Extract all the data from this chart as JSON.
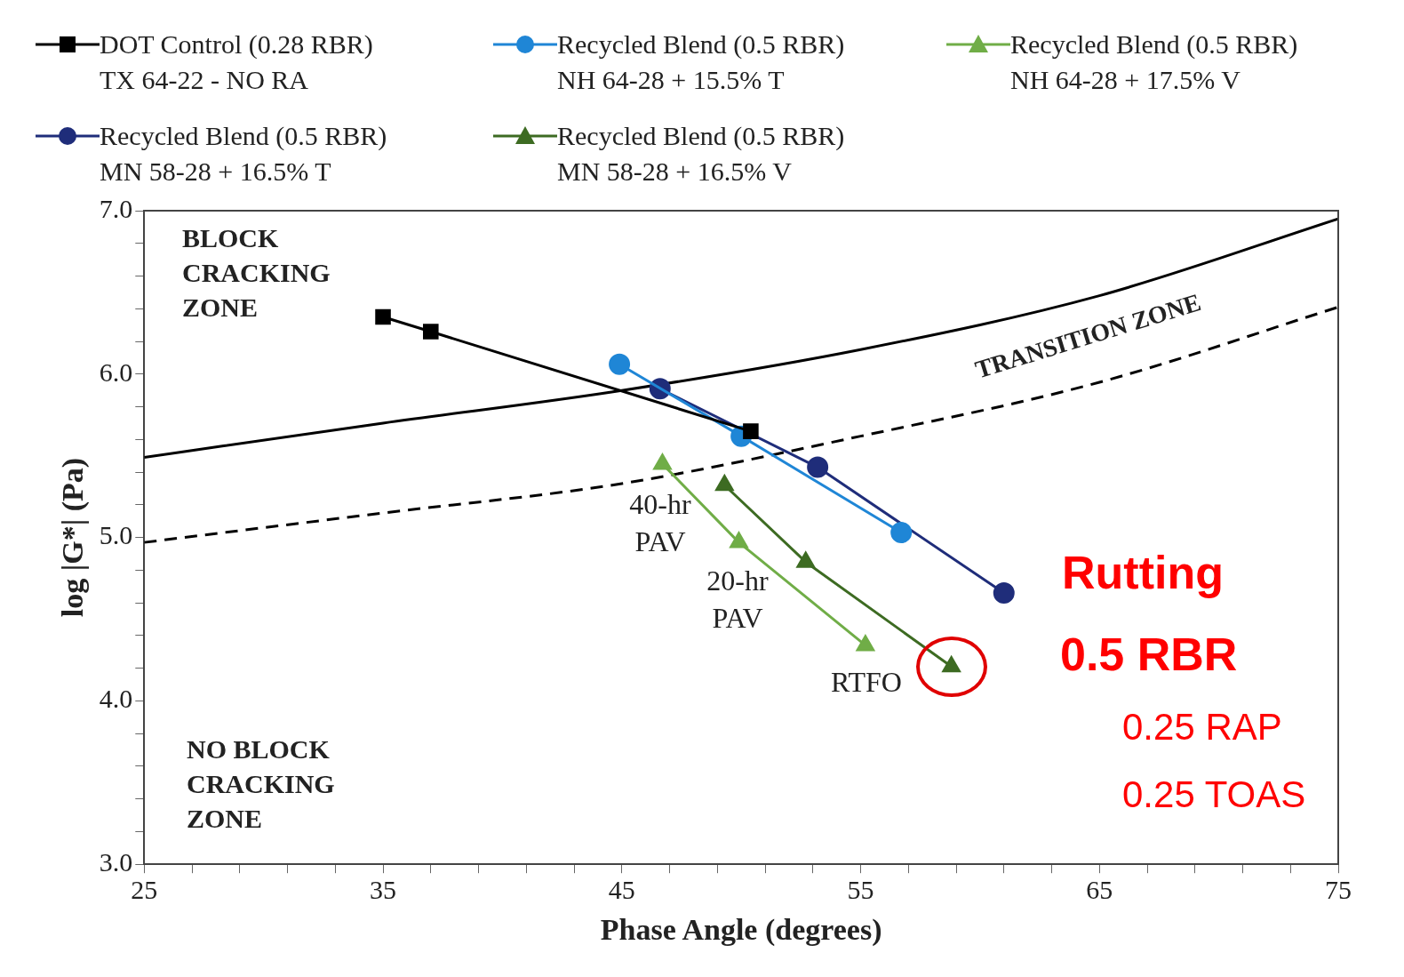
{
  "chart_data": {
    "type": "line",
    "xlabel": "Phase Angle (degrees)",
    "ylabel": "log |G*| (Pa)",
    "xlim": [
      25,
      75
    ],
    "ylim": [
      3,
      7
    ],
    "xticks": [
      25,
      {
        "value": 27,
        "label": null
      },
      {
        "value": 29,
        "label": null
      },
      {
        "value": 31,
        "label": null
      },
      {
        "value": 33,
        "label": null
      },
      35,
      {
        "value": 37,
        "label": null
      },
      {
        "value": 39,
        "label": null
      },
      {
        "value": 41,
        "label": null
      },
      {
        "value": 43,
        "label": null
      },
      45,
      {
        "value": 47,
        "label": null
      },
      {
        "value": 49,
        "label": null
      },
      {
        "value": 51,
        "label": null
      },
      {
        "value": 53,
        "label": null
      },
      55,
      {
        "value": 57,
        "label": null
      },
      {
        "value": 59,
        "label": null
      },
      {
        "value": 61,
        "label": null
      },
      {
        "value": 63,
        "label": null
      },
      65,
      {
        "value": 67,
        "label": null
      },
      {
        "value": 69,
        "label": null
      },
      {
        "value": 71,
        "label": null
      },
      {
        "value": 73,
        "label": null
      },
      75
    ],
    "yticks": [
      {
        "value": 3,
        "label": "3.0"
      },
      {
        "value": 3.2,
        "label": null
      },
      {
        "value": 3.4,
        "label": null
      },
      {
        "value": 3.6,
        "label": null
      },
      {
        "value": 3.8,
        "label": null
      },
      {
        "value": 4,
        "label": "4.0"
      },
      {
        "value": 4.2,
        "label": null
      },
      {
        "value": 4.4,
        "label": null
      },
      {
        "value": 4.6,
        "label": null
      },
      {
        "value": 4.8,
        "label": null
      },
      {
        "value": 5,
        "label": "5.0"
      },
      {
        "value": 5.2,
        "label": null
      },
      {
        "value": 5.4,
        "label": null
      },
      {
        "value": 5.6,
        "label": null
      },
      {
        "value": 5.8,
        "label": null
      },
      {
        "value": 6,
        "label": "6.0"
      },
      {
        "value": 6.2,
        "label": null
      },
      {
        "value": 6.4,
        "label": null
      },
      {
        "value": 6.6,
        "label": null
      },
      {
        "value": 6.8,
        "label": null
      },
      {
        "value": 7,
        "label": "7.0"
      }
    ],
    "grid": false,
    "legend": "top",
    "series": [
      {
        "name": "DOT Control (0.28 RBR)\nTX 64-22 - NO RA",
        "color": "#000000",
        "marker": "square",
        "x": [
          35.0,
          37.0,
          50.4
        ],
        "values": [
          6.35,
          6.26,
          5.65
        ]
      },
      {
        "name": "Recycled Blend (0.5 RBR)\nNH 64-28 + 15.5% T",
        "color": "#1f86d6",
        "marker": "circle",
        "x": [
          44.9,
          50.0,
          56.7
        ],
        "values": [
          6.06,
          5.62,
          5.03
        ]
      },
      {
        "name": "Recycled Blend (0.5 RBR)\nNH 64-28 + 17.5% V",
        "color": "#70ad47",
        "marker": "triangle",
        "x": [
          46.7,
          49.9,
          55.2
        ],
        "values": [
          5.45,
          4.97,
          4.34
        ]
      },
      {
        "name": "Recycled Blend (0.5 RBR)\nMN 58-28 + 16.5% T",
        "color": "#1f2d7a",
        "marker": "circle",
        "x": [
          46.6,
          53.2,
          61.0
        ],
        "values": [
          5.91,
          5.43,
          4.66
        ]
      },
      {
        "name": "Recycled Blend (0.5 RBR)\nMN 58-28 + 16.5% V",
        "color": "#3d6b22",
        "marker": "triangle",
        "x": [
          49.3,
          52.7,
          58.8
        ],
        "values": [
          5.32,
          4.85,
          4.21
        ]
      },
      {
        "color": "#000000",
        "marker": "none",
        "line_style": "solid",
        "x": [
          25,
          35,
          45,
          55,
          65,
          75
        ],
        "values": [
          5.49,
          5.7,
          5.9,
          6.15,
          6.48,
          6.95
        ]
      },
      {
        "color": "#000000",
        "marker": "none",
        "line_style": "dashed",
        "x": [
          25,
          35,
          45,
          55,
          65,
          75
        ],
        "values": [
          4.97,
          5.15,
          5.33,
          5.62,
          5.95,
          6.41
        ]
      }
    ],
    "annotations": [
      "BLOCK\nCRACKING\nZONE",
      "NO BLOCK\nCRACKING\nZONE",
      "TRANSITION ZONE",
      "40-hr\nPAV",
      "20-hr\nPAV",
      "RTFO",
      "Rutting",
      "0.5 RBR",
      "0.25 RAP",
      "0.25 TOAS"
    ]
  }
}
